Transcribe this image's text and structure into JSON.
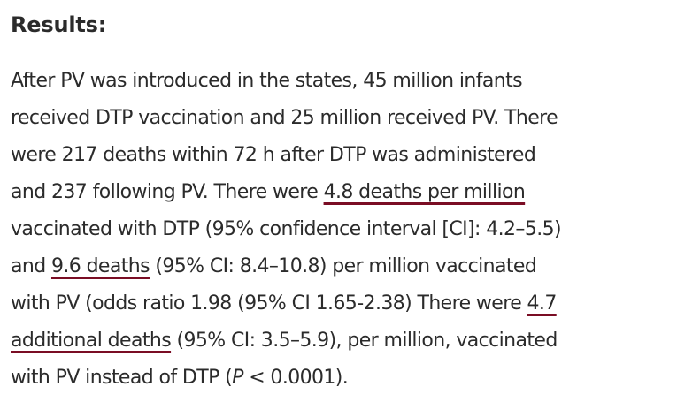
{
  "heading": "Results:",
  "lines": [
    {
      "segments": [
        "After PV was introduced in the states, 45 million infants"
      ]
    },
    {
      "segments": [
        "received DTP vaccination and 25 million received PV. There"
      ]
    },
    {
      "segments": [
        "were 217 deaths within 72 h after DTP was administered"
      ]
    },
    {
      "segments": [
        "and 237 following PV. There were ",
        "4.8 deaths per million"
      ]
    },
    {
      "segments": [
        "vaccinated with DTP (95% confidence interval [CI]: 4.2–5.5)"
      ]
    },
    {
      "segments": [
        "and ",
        "9.6 deaths",
        " (95% CI: 8.4–10.8) per million vaccinated"
      ]
    },
    {
      "segments": [
        "with PV (odds ratio 1.98 (95% CI 1.65-2.38) There were ",
        "4.7"
      ]
    },
    {
      "segments": [
        "additional deaths",
        " (95% CI: 3.5–5.9), per million, vaccinated"
      ]
    },
    {
      "segments": [
        "with PV instead of DTP (",
        "P",
        " < 0.0001)."
      ]
    }
  ],
  "underline_color": "#7a0d24"
}
